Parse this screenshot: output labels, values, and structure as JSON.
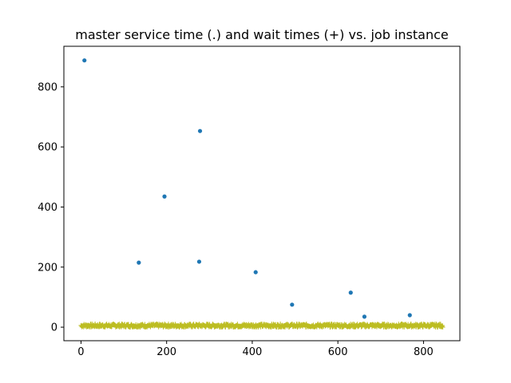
{
  "chart_data": {
    "type": "scatter",
    "title": "master service time (.) and wait times (+) vs. job instance",
    "xlabel": "",
    "ylabel": "",
    "xlim": [
      -40,
      885
    ],
    "ylim": [
      -45,
      935
    ],
    "xticks": [
      0,
      200,
      400,
      600,
      800
    ],
    "yticks": [
      0,
      200,
      400,
      600,
      800
    ],
    "grid": false,
    "series": [
      {
        "marker": "dot",
        "color": "#1f77b4",
        "points": [
          {
            "x": 8,
            "y": 888
          },
          {
            "x": 135,
            "y": 215
          },
          {
            "x": 195,
            "y": 435
          },
          {
            "x": 276,
            "y": 218
          },
          {
            "x": 278,
            "y": 653
          },
          {
            "x": 408,
            "y": 183
          },
          {
            "x": 493,
            "y": 75
          },
          {
            "x": 630,
            "y": 115
          },
          {
            "x": 662,
            "y": 35
          },
          {
            "x": 768,
            "y": 40
          }
        ]
      },
      {
        "marker": "plus",
        "color": "#bcbd22",
        "x_range": [
          0,
          845
        ],
        "y_range": [
          0,
          18
        ],
        "count": 845
      }
    ]
  }
}
